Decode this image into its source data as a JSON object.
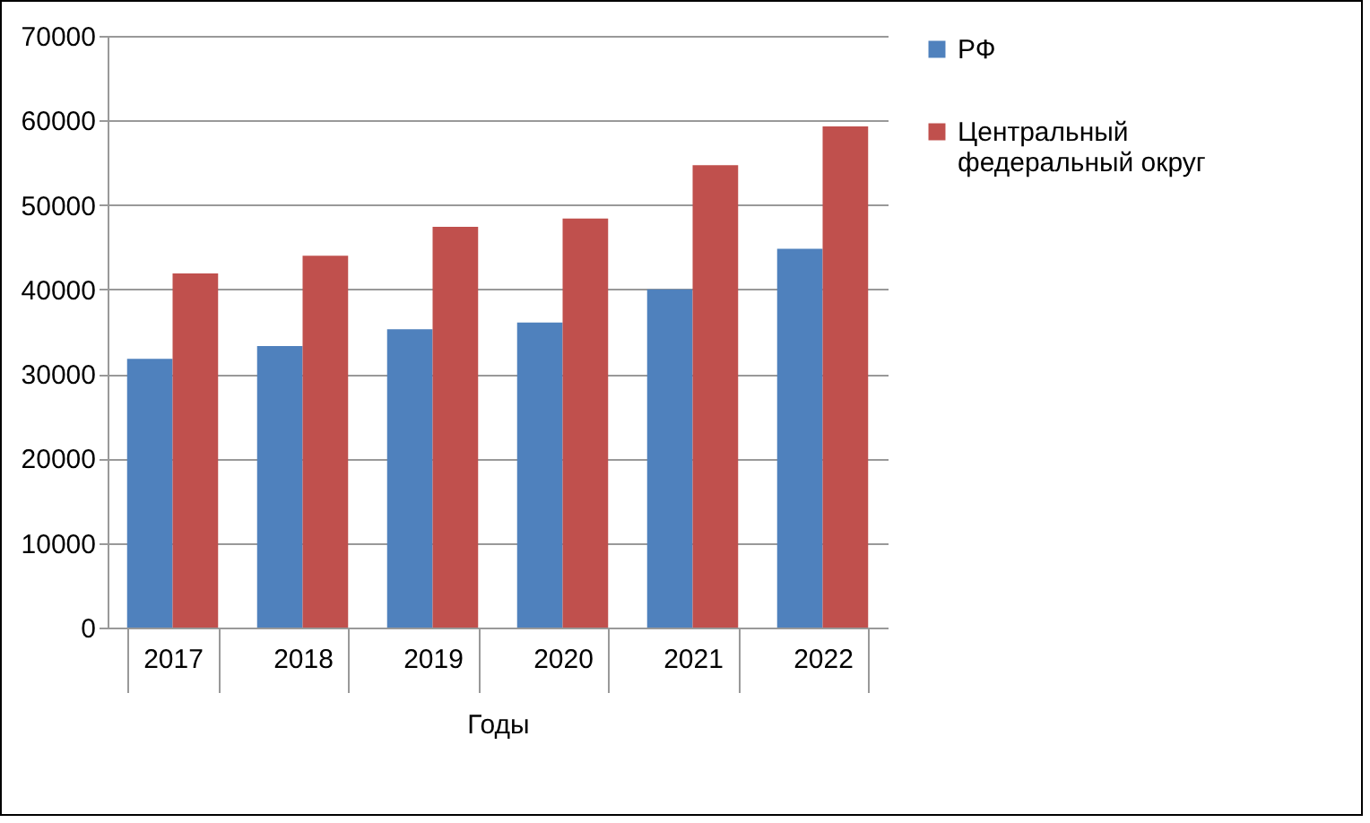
{
  "chart_data": {
    "type": "bar",
    "xlabel": "Годы",
    "categories": [
      "2017",
      "2018",
      "2019",
      "2020",
      "2021",
      "2022"
    ],
    "series": [
      {
        "name": "РФ",
        "color": "#4f81bd",
        "values": [
          31800,
          33300,
          35300,
          36100,
          40000,
          44800
        ]
      },
      {
        "name": "Центральный федеральный округ",
        "color": "#c0504d",
        "values": [
          41900,
          44000,
          47400,
          48400,
          54700,
          59300
        ]
      }
    ],
    "ylim": [
      0,
      70000
    ],
    "yticks": [
      0,
      10000,
      20000,
      30000,
      40000,
      50000,
      60000,
      70000
    ],
    "grid": "y",
    "legend": "right"
  }
}
